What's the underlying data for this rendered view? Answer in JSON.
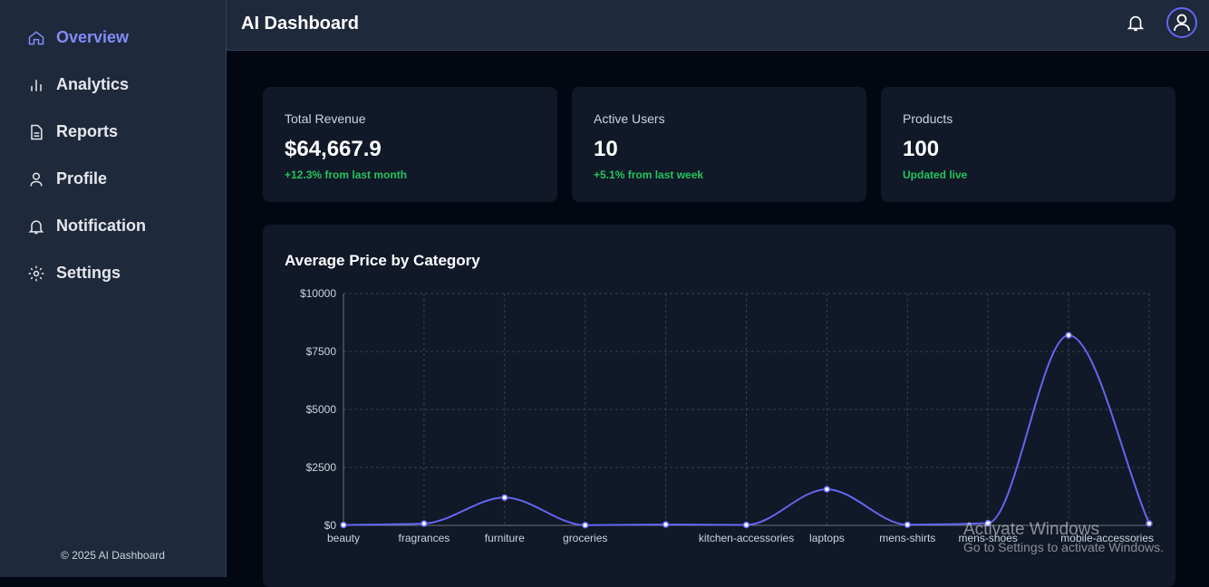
{
  "sidebar": {
    "nav": [
      "Overview",
      "Analytics",
      "Reports",
      "Profile",
      "Notification",
      "Settings"
    ],
    "footer": "© 2025 AI Dashboard"
  },
  "header": {
    "title": "AI Dashboard"
  },
  "cards": [
    {
      "label": "Total Revenue",
      "value": "$64,667.9",
      "note": "+12.3% from last month"
    },
    {
      "label": "Active Users",
      "value": "10",
      "note": "+5.1% from last week"
    },
    {
      "label": "Products",
      "value": "100",
      "note": "Updated live"
    }
  ],
  "chart_data": {
    "type": "line",
    "title": "Average Price by Category",
    "categories": [
      "beauty",
      "fragrances",
      "furniture",
      "groceries",
      null,
      "kitchen-accessories",
      "laptops",
      "mens-shirts",
      "mens-shoes",
      null,
      "mobile-accessories"
    ],
    "series": [
      {
        "name": "Average Price",
        "color": "#6366f1",
        "values": [
          20,
          80,
          1200,
          10,
          40,
          20,
          1560,
          30,
          100,
          8200,
          80
        ]
      }
    ],
    "ylim": [
      0,
      10000
    ],
    "yticks": [
      {
        "value": 0,
        "label": "$0"
      },
      {
        "value": 2500,
        "label": "$2500"
      },
      {
        "value": 5000,
        "label": "$5000"
      },
      {
        "value": 7500,
        "label": "$7500"
      },
      {
        "value": 10000,
        "label": "$10000"
      }
    ],
    "grid": true
  },
  "watermark": {
    "title": "Activate Windows",
    "subtitle": "Go to Settings to activate Windows."
  }
}
